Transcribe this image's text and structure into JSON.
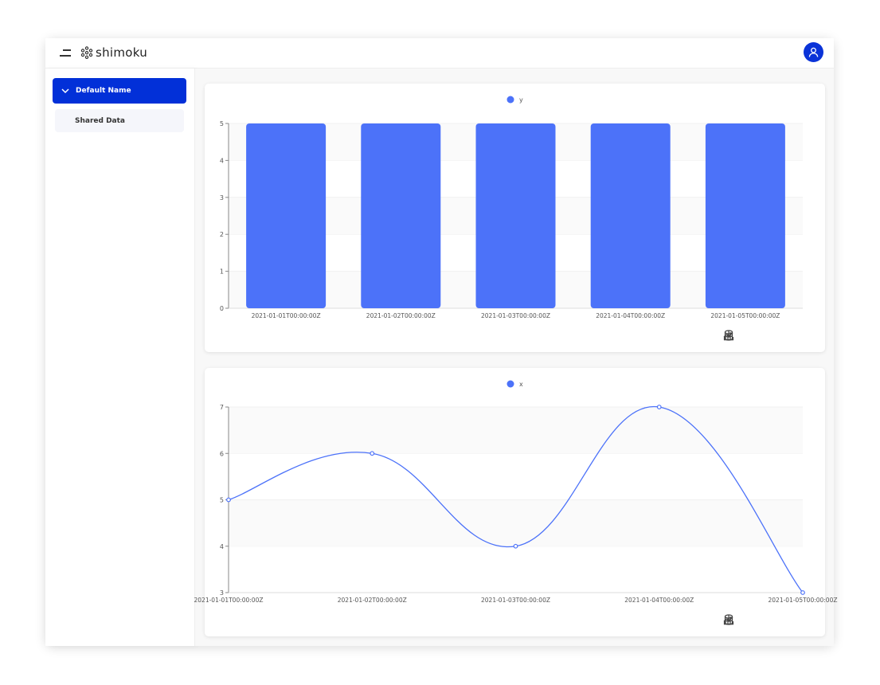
{
  "header": {
    "logo_text": "shimoku",
    "menu_icon": "menu-icon",
    "avatar_icon": "user-icon"
  },
  "sidebar": {
    "items": [
      {
        "label": "Default Name",
        "expanded": true
      },
      {
        "label": "Shared Data"
      }
    ]
  },
  "colors": {
    "accent": "#0230d8",
    "series": "#4c72f9"
  },
  "chart_data": [
    {
      "type": "bar",
      "legend": [
        "y"
      ],
      "legend_placement": "top",
      "categories": [
        "2021-01-01T00:00:00Z",
        "2021-01-02T00:00:00Z",
        "2021-01-03T00:00:00Z",
        "2021-01-04T00:00:00Z",
        "2021-01-05T00:00:00Z"
      ],
      "series": [
        {
          "name": "y",
          "values": [
            5,
            5,
            5,
            5,
            5
          ]
        }
      ],
      "ylim": [
        0,
        5
      ],
      "yticks": [
        0,
        1,
        2,
        3,
        4,
        5
      ],
      "grid": true
    },
    {
      "type": "line",
      "smooth": true,
      "legend": [
        "x"
      ],
      "legend_placement": "top",
      "categories": [
        "2021-01-01T00:00:00Z",
        "2021-01-02T00:00:00Z",
        "2021-01-03T00:00:00Z",
        "2021-01-04T00:00:00Z",
        "2021-01-05T00:00:00Z"
      ],
      "series": [
        {
          "name": "x",
          "values": [
            5,
            6,
            4,
            7,
            3
          ]
        }
      ],
      "ylim": [
        3,
        7
      ],
      "yticks": [
        3,
        4,
        5,
        6,
        7
      ],
      "grid": true
    }
  ],
  "toolbar": {
    "icons": [
      "download-icon",
      "line-chart-icon",
      "bar-chart-icon",
      "database-icon"
    ]
  }
}
